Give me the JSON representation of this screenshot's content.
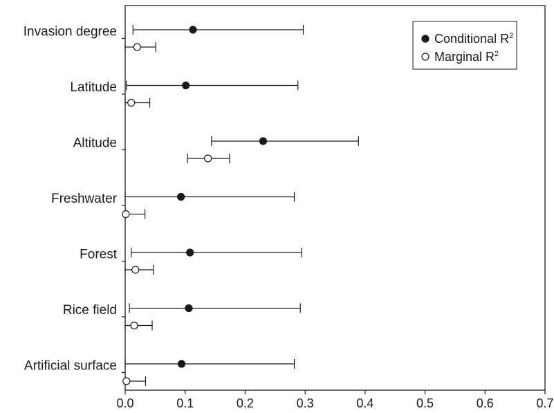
{
  "chart_data": {
    "type": "scatter",
    "orientation": "horizontal-errorbar",
    "title": "",
    "xlabel": "",
    "ylabel": "",
    "xlim": [
      0,
      0.7
    ],
    "xticks": [
      0.0,
      0.1,
      0.2,
      0.3,
      0.4,
      0.5,
      0.6,
      0.7
    ],
    "xtick_labels": [
      "0.0",
      "0.1",
      "0.2",
      "0.3",
      "0.4",
      "0.5",
      "0.6",
      "0.7"
    ],
    "grid": false,
    "legend_position": "top-right",
    "categories": [
      "Invasion degree",
      "Latitude",
      "Altitude",
      "Freshwater",
      "Forest",
      "Rice field",
      "Artificial surface"
    ],
    "series": [
      {
        "name": "Conditional R",
        "name_superscript": "2",
        "marker": "filled-circle",
        "color": "#1a1a1a",
        "values": [
          0.113,
          0.101,
          0.23,
          0.093,
          0.108,
          0.106,
          0.094
        ],
        "lower": [
          0.013,
          0.002,
          0.144,
          0.0,
          0.01,
          0.007,
          0.0
        ],
        "upper": [
          0.297,
          0.288,
          0.389,
          0.282,
          0.294,
          0.292,
          0.282
        ]
      },
      {
        "name": "Marginal R",
        "name_superscript": "2",
        "marker": "open-circle",
        "color": "#1a1a1a",
        "values": [
          0.02,
          0.01,
          0.138,
          0.001,
          0.017,
          0.015,
          0.002
        ],
        "lower": [
          0.0,
          0.0,
          0.104,
          0.0,
          0.0,
          0.0,
          0.0
        ],
        "upper": [
          0.051,
          0.041,
          0.174,
          0.033,
          0.047,
          0.045,
          0.034
        ]
      }
    ]
  }
}
